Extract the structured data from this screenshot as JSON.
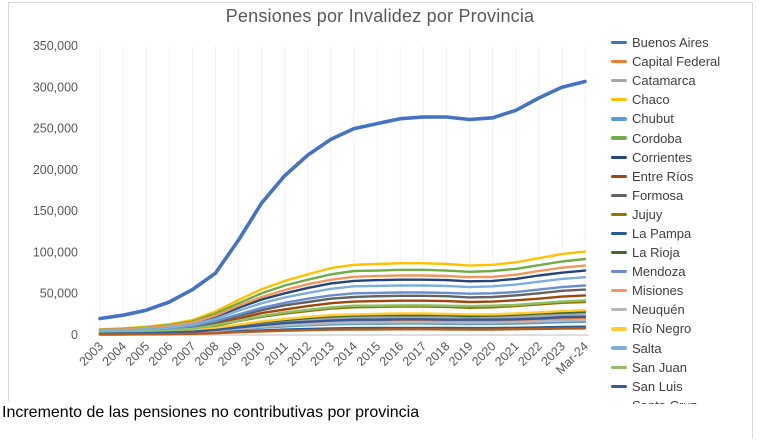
{
  "chart": {
    "title": "Pensiones por Invalidez  por Provincia",
    "caption": "Incremento de las pensiones no contributivas por provincia"
  },
  "chart_data": {
    "type": "line",
    "title": "Pensiones por Invalidez  por Provincia",
    "xlabel": "",
    "ylabel": "",
    "ylim": [
      0,
      350000
    ],
    "y_tick_labels": [
      "0",
      "50,000",
      "100,000",
      "150,000",
      "200,000",
      "250,000",
      "300,000",
      "350,000"
    ],
    "grid": "vertical-faint",
    "legend_position": "right",
    "legend_clipped_at_bottom": true,
    "categories": [
      "2003",
      "2004",
      "2005",
      "2006",
      "2007",
      "2008",
      "2009",
      "2010",
      "2011",
      "2012",
      "2013",
      "2014",
      "2015",
      "2016",
      "2017",
      "2018",
      "2019",
      "2020",
      "2021",
      "2022",
      "2023",
      "Mar-24"
    ],
    "series": [
      {
        "name": "Buenos Aires",
        "color": "#4472C4",
        "values": [
          20000,
          24000,
          30000,
          40000,
          55000,
          75000,
          115000,
          160000,
          193000,
          218000,
          237000,
          250000,
          256000,
          262000,
          264000,
          264000,
          261000,
          263000,
          272000,
          287000,
          300000,
          307000
        ]
      },
      {
        "name": "Capital Federal",
        "color": "#ED7D31",
        "values": [
          1400,
          1600,
          2000,
          2600,
          3600,
          5600,
          8400,
          11000,
          13000,
          14600,
          16000,
          16800,
          17000,
          17200,
          17200,
          17000,
          16600,
          16800,
          17400,
          18400,
          19400,
          20000
        ]
      },
      {
        "name": "Catamarca",
        "color": "#A5A5A5",
        "values": [
          1750,
          2000,
          2500,
          3250,
          4500,
          7000,
          10500,
          13750,
          16250,
          18250,
          20000,
          21000,
          21250,
          21500,
          21500,
          21250,
          20750,
          21000,
          21750,
          23000,
          24250,
          25000
        ]
      },
      {
        "name": "Chaco",
        "color": "#FFC000",
        "values": [
          7000,
          8000,
          10000,
          13000,
          18000,
          28500,
          42500,
          55500,
          65500,
          73500,
          81000,
          85000,
          86000,
          87000,
          87000,
          86000,
          84000,
          85000,
          88000,
          93000,
          98000,
          101000
        ]
      },
      {
        "name": "Chubut",
        "color": "#5B9BD5",
        "values": [
          1100,
          1300,
          1600,
          2100,
          2900,
          4500,
          6700,
          8800,
          10400,
          11700,
          12800,
          13400,
          13600,
          13800,
          13800,
          13600,
          13300,
          13400,
          13900,
          14700,
          15500,
          16000
        ]
      },
      {
        "name": "Cordoba",
        "color": "#70AD47",
        "values": [
          6500,
          7500,
          9000,
          12000,
          16500,
          26000,
          38500,
          50500,
          60000,
          67000,
          73500,
          77500,
          78000,
          79000,
          79000,
          78000,
          76500,
          77500,
          80000,
          84500,
          89000,
          92000
        ]
      },
      {
        "name": "Corrientes",
        "color": "#264478",
        "values": [
          5500,
          6000,
          8000,
          10000,
          14000,
          22000,
          33000,
          43000,
          50500,
          57000,
          62500,
          65500,
          66500,
          67000,
          67000,
          66500,
          65000,
          65500,
          68000,
          72000,
          75500,
          78000
        ]
      },
      {
        "name": "Entre Ríos",
        "color": "#9E480E",
        "values": [
          3400,
          3800,
          4800,
          6200,
          8600,
          13500,
          20000,
          26500,
          31000,
          35000,
          38500,
          40500,
          41000,
          41500,
          41500,
          41000,
          40000,
          40500,
          42000,
          44000,
          46500,
          48000
        ]
      },
      {
        "name": "Formosa",
        "color": "#636363",
        "values": [
          3900,
          4400,
          5500,
          7200,
          10000,
          15500,
          23000,
          30000,
          36000,
          40000,
          44000,
          46000,
          47000,
          47500,
          47500,
          47000,
          45500,
          46000,
          48000,
          50500,
          53500,
          55000
        ]
      },
      {
        "name": "Jujuy",
        "color": "#997300",
        "values": [
          2800,
          3200,
          4000,
          5200,
          7200,
          11000,
          17000,
          22000,
          26000,
          29000,
          32000,
          33500,
          34000,
          34500,
          34500,
          34000,
          33000,
          33500,
          35000,
          37000,
          39000,
          40000
        ]
      },
      {
        "name": "La Pampa",
        "color": "#255E91",
        "values": [
          700,
          800,
          1000,
          1300,
          1800,
          2800,
          4200,
          5500,
          6500,
          7300,
          8000,
          8400,
          8500,
          8600,
          8600,
          8500,
          8300,
          8400,
          8700,
          9200,
          9700,
          10000
        ]
      },
      {
        "name": "La Rioja",
        "color": "#43682B",
        "values": [
          2000,
          2200,
          2800,
          3600,
          5000,
          8000,
          12000,
          15500,
          18000,
          20500,
          22500,
          23500,
          24000,
          24000,
          24000,
          24000,
          23000,
          23500,
          24500,
          26000,
          27000,
          28000
        ]
      },
      {
        "name": "Mendoza",
        "color": "#698ED0",
        "values": [
          4200,
          4800,
          6000,
          8000,
          11000,
          17000,
          25000,
          33000,
          39000,
          44000,
          48000,
          50500,
          51000,
          51500,
          51500,
          51000,
          50000,
          50500,
          52000,
          55000,
          58000,
          60000
        ]
      },
      {
        "name": "Misiones",
        "color": "#F1975A",
        "values": [
          6000,
          6700,
          8400,
          11000,
          15000,
          23500,
          35500,
          46000,
          54500,
          61500,
          67000,
          70500,
          71500,
          72000,
          72000,
          71500,
          70000,
          70500,
          73000,
          77500,
          81500,
          84000
        ]
      },
      {
        "name": "Neuquén",
        "color": "#B7B7B7",
        "values": [
          1300,
          1400,
          1800,
          2300,
          3200,
          5000,
          7600,
          10000,
          11700,
          13000,
          14400,
          15000,
          15300,
          15500,
          15500,
          15300,
          15000,
          15000,
          15700,
          16500,
          17500,
          18000
        ]
      },
      {
        "name": "Río Negro",
        "color": "#FFCD33",
        "values": [
          2100,
          2400,
          3000,
          3900,
          5400,
          8400,
          12600,
          16500,
          19500,
          22000,
          24000,
          25000,
          25500,
          26000,
          26000,
          25500,
          25000,
          25000,
          26000,
          27500,
          29000,
          30000
        ]
      },
      {
        "name": "Salta",
        "color": "#7CAFDD",
        "values": [
          5000,
          5600,
          7000,
          9000,
          12500,
          19500,
          29500,
          38500,
          45500,
          51000,
          56000,
          59000,
          59500,
          60000,
          60000,
          59500,
          58000,
          59000,
          61000,
          64500,
          68000,
          70000
        ]
      },
      {
        "name": "San Juan",
        "color": "#8CC168",
        "values": [
          3000,
          3400,
          4200,
          5500,
          7500,
          12000,
          17500,
          23000,
          27500,
          30500,
          33500,
          35500,
          35500,
          36000,
          36000,
          35500,
          35000,
          35500,
          36500,
          38500,
          40500,
          42000
        ]
      },
      {
        "name": "San Luis",
        "color": "#335AA1",
        "values": [
          1500,
          1800,
          2200,
          2900,
          4000,
          6200,
          9200,
          12000,
          14500,
          16000,
          17500,
          18500,
          18500,
          19000,
          19000,
          18500,
          18500,
          18500,
          19000,
          20000,
          21500,
          22000
        ]
      },
      {
        "name": "Santa Cruz",
        "color": "#B85C1C",
        "values": [
          600,
          600,
          800,
          1000,
          1400,
          2200,
          3400,
          4400,
          5200,
          5800,
          6400,
          6700,
          6800,
          6900,
          6900,
          6800,
          6600,
          6700,
          7000,
          7400,
          7800,
          8000
        ]
      }
    ]
  }
}
